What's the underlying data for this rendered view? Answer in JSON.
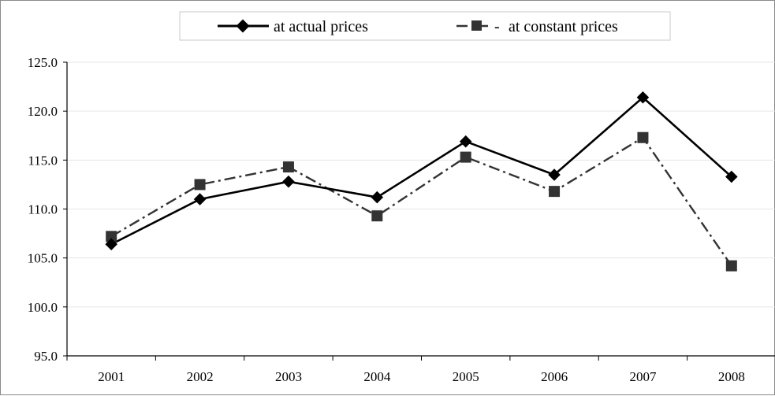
{
  "chart_data": {
    "type": "line",
    "categories": [
      "2001",
      "2002",
      "2003",
      "2004",
      "2005",
      "2006",
      "2007",
      "2008"
    ],
    "series": [
      {
        "name": "at actual prices",
        "values": [
          106.4,
          111.0,
          112.8,
          111.2,
          116.9,
          113.5,
          121.4,
          113.3
        ],
        "color": "#000000",
        "marker": "diamond",
        "line_style": "solid"
      },
      {
        "name": "at constant prices",
        "values": [
          107.2,
          112.5,
          114.3,
          109.3,
          115.3,
          111.8,
          117.3,
          104.2
        ],
        "color": "#333333",
        "marker": "square",
        "line_style": "dash-dot"
      }
    ],
    "ylim": [
      95.0,
      125.0
    ],
    "y_ticks": [
      "95.0",
      "100.0",
      "105.0",
      "110.0",
      "115.0",
      "120.0",
      "125.0"
    ],
    "grid": true,
    "legend_position": "top"
  }
}
